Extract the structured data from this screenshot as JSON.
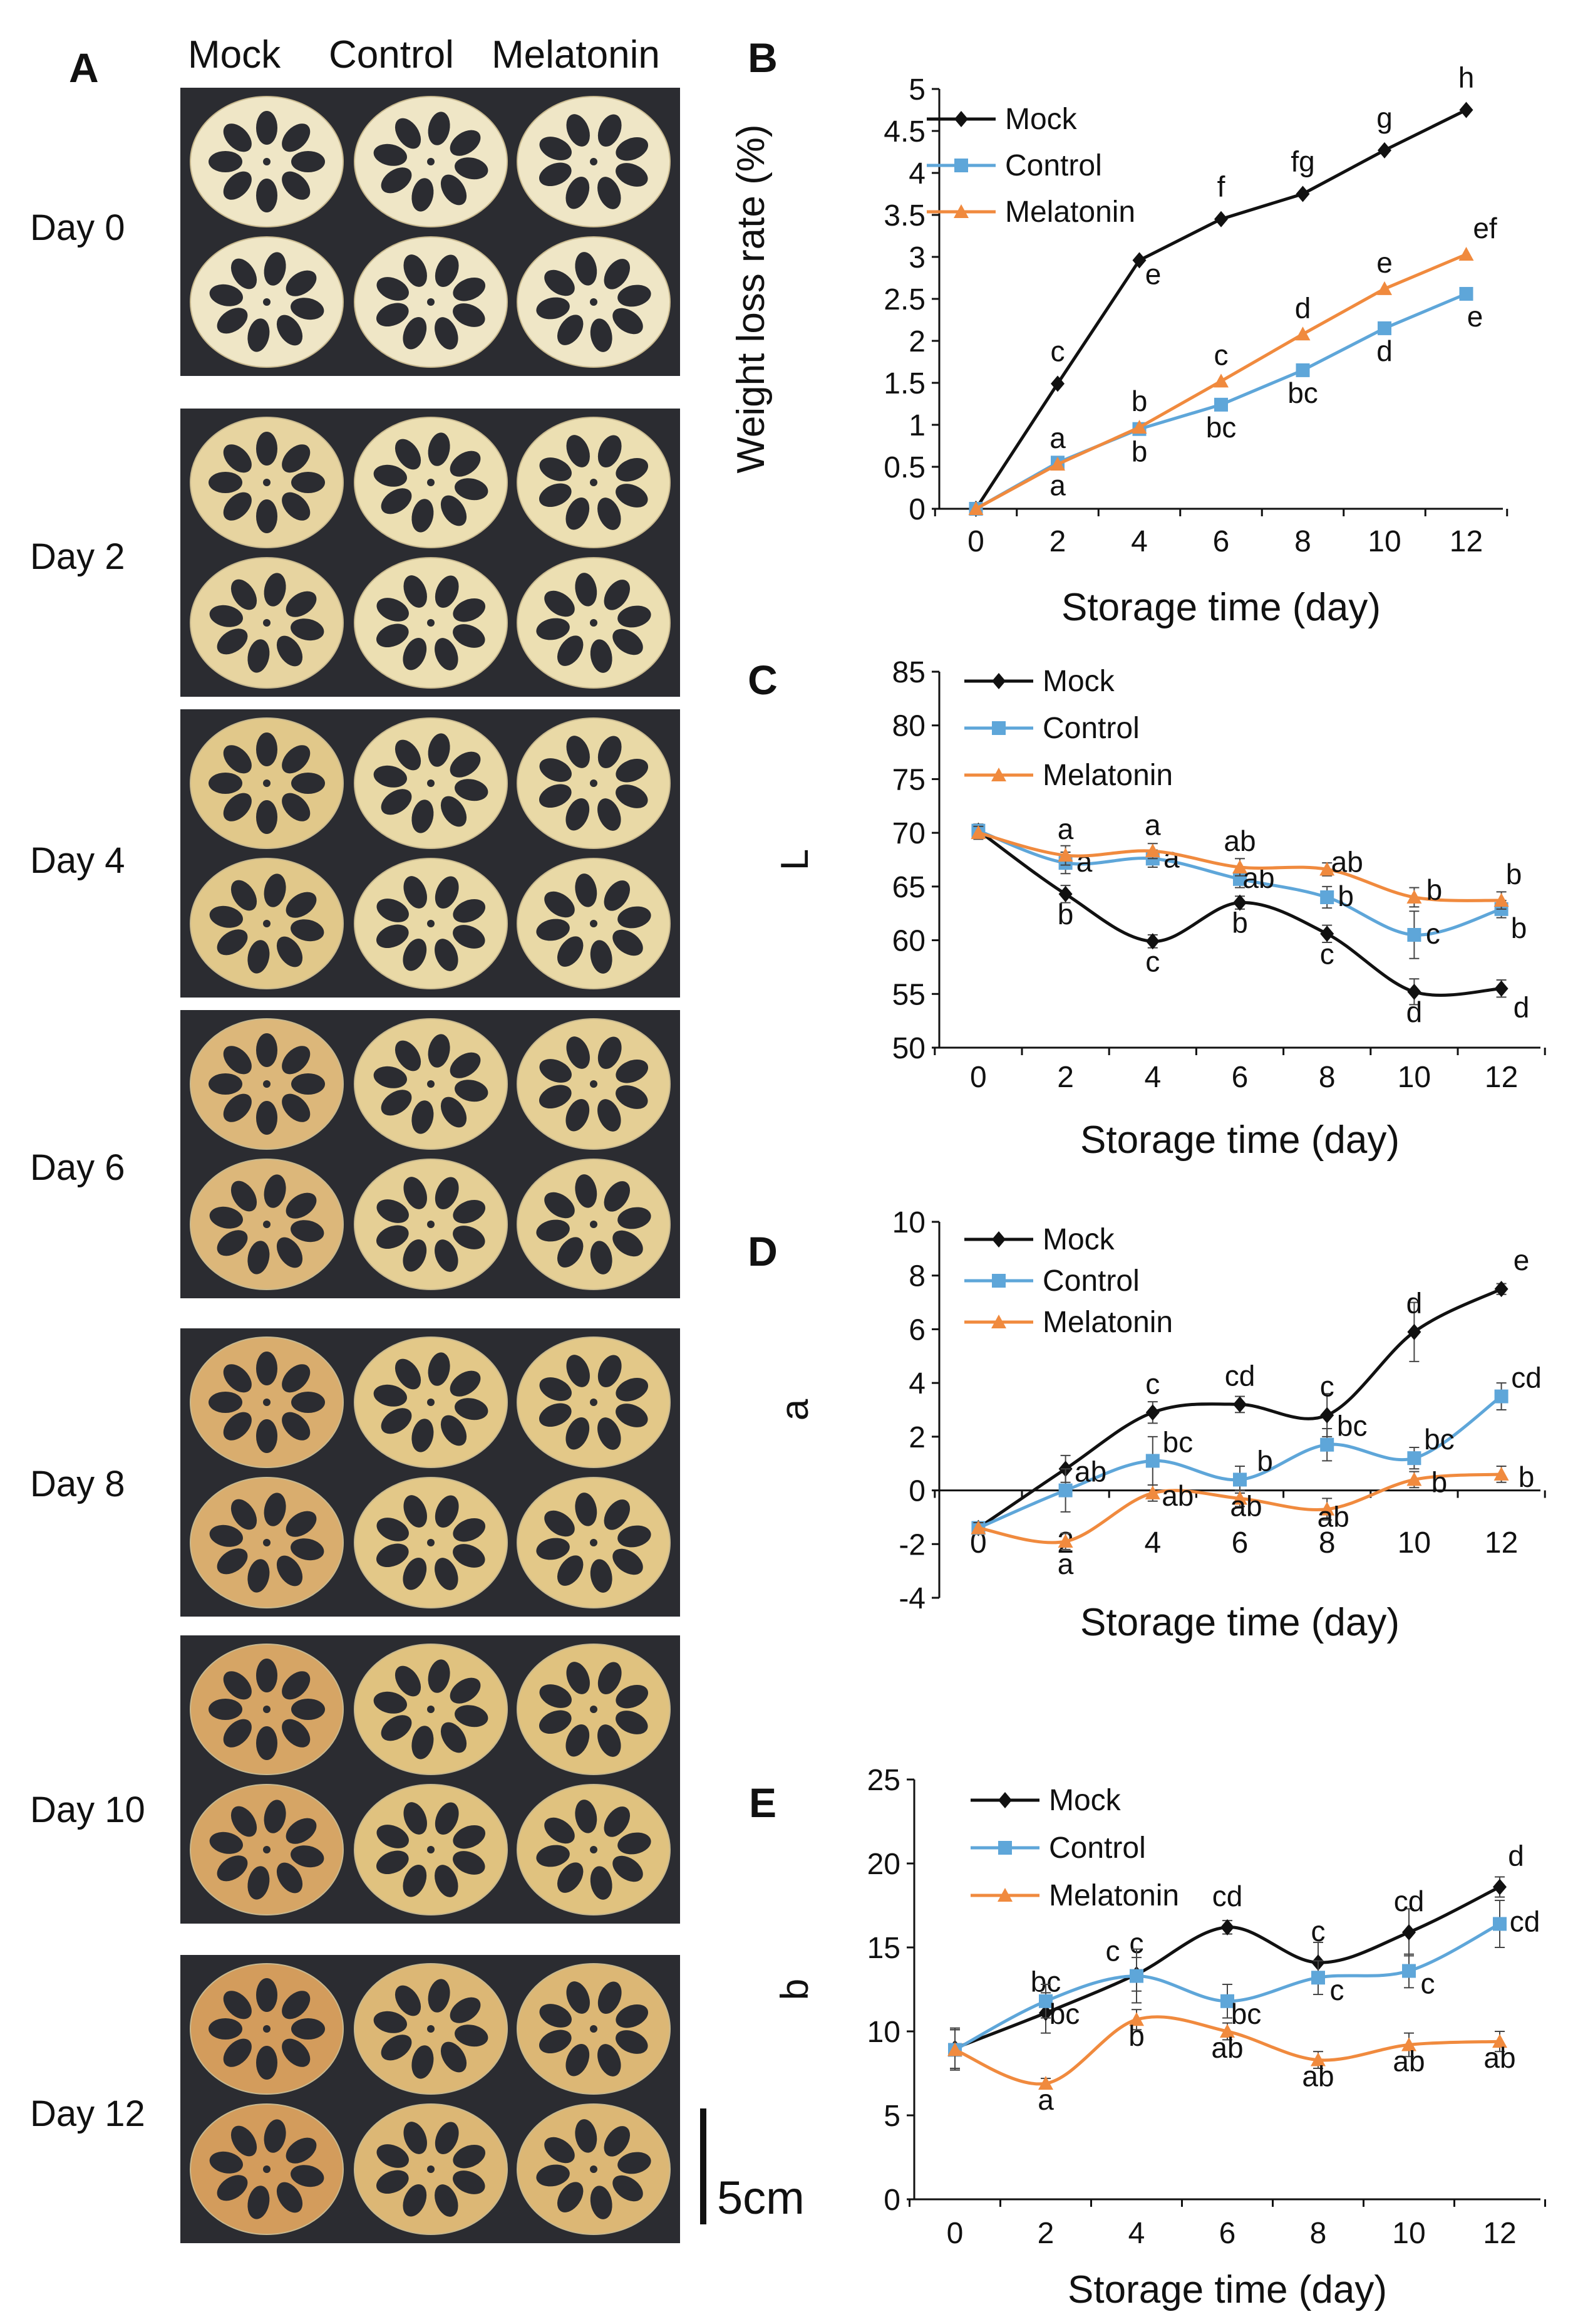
{
  "panel_a": {
    "label": "A",
    "columns": [
      "Mock",
      "Control",
      "Melatonin"
    ],
    "days": [
      "Day 0",
      "Day 2",
      "Day 4",
      "Day 6",
      "Day 8",
      "Day 10",
      "Day 12"
    ],
    "tints": [
      "#efe6c6",
      "#ecdfb2",
      "#e9d9a6",
      "#e5cf95",
      "#e3c888",
      "#e0c27f",
      "#dcb775"
    ],
    "mock_tints": [
      "#efe6c6",
      "#e7d4a0",
      "#e1c88a",
      "#dcb77a",
      "#d9ad6e",
      "#d6a565",
      "#d39c5c"
    ],
    "scale_bar": "5cm"
  },
  "chart_data": [
    {
      "panel": "B",
      "type": "line",
      "xlabel": "Storage time (day)",
      "ylabel": "Weight loss rate (%)",
      "x": [
        0,
        2,
        4,
        6,
        8,
        10,
        12
      ],
      "xticks": [
        "0",
        "2",
        "4",
        "6",
        "8",
        "10",
        "12"
      ],
      "ylim": [
        0,
        5
      ],
      "yticks": [
        "0",
        "0.5",
        "1",
        "1.5",
        "2",
        "2.5",
        "3",
        "3.5",
        "4",
        "4.5",
        "5"
      ],
      "legend_position": "top-left",
      "series": [
        {
          "name": "Mock",
          "color": "#111111",
          "marker": "diamond",
          "values": [
            0,
            1.49,
            2.96,
            3.45,
            3.75,
            4.27,
            4.75
          ],
          "errors": [
            0,
            0,
            0,
            0,
            0,
            0,
            0
          ],
          "labels": [
            "",
            "c",
            "e",
            "f",
            "fg",
            "g",
            "h"
          ]
        },
        {
          "name": "Control",
          "color": "#5ea6d9",
          "marker": "square",
          "values": [
            0,
            0.55,
            0.95,
            1.24,
            1.65,
            2.15,
            2.56
          ],
          "errors": [
            0,
            0,
            0,
            0,
            0,
            0,
            0
          ],
          "labels": [
            "",
            "a",
            "b",
            "bc",
            "bc",
            "d",
            "e"
          ]
        },
        {
          "name": "Melatonin",
          "color": "#f08a3e",
          "marker": "triangle",
          "values": [
            0,
            0.53,
            0.97,
            1.52,
            2.08,
            2.62,
            3.03
          ],
          "errors": [
            0,
            0,
            0,
            0,
            0,
            0,
            0
          ],
          "labels": [
            "",
            "a",
            "b",
            "c",
            "d",
            "e",
            "ef"
          ]
        }
      ]
    },
    {
      "panel": "C",
      "type": "line",
      "xlabel": "Storage time (day)",
      "ylabel": "L",
      "x": [
        0,
        2,
        4,
        6,
        8,
        10,
        12
      ],
      "xticks": [
        "0",
        "2",
        "4",
        "6",
        "8",
        "10",
        "12"
      ],
      "ylim": [
        50,
        85
      ],
      "yticks": [
        "50",
        "55",
        "60",
        "65",
        "70",
        "75",
        "80",
        "85"
      ],
      "legend_position": "top-left",
      "series": [
        {
          "name": "Mock",
          "color": "#111111",
          "marker": "diamond",
          "values": [
            70.2,
            64.3,
            59.9,
            63.5,
            60.6,
            55.2,
            55.5
          ],
          "errors": [
            0.6,
            0.8,
            0.6,
            0.6,
            0.8,
            1.2,
            0.8
          ],
          "labels": [
            "",
            "b",
            "c",
            "b",
            "c",
            "d",
            "d"
          ]
        },
        {
          "name": "Control",
          "color": "#5ea6d9",
          "marker": "square",
          "values": [
            70.2,
            67.2,
            67.6,
            65.7,
            64.0,
            60.5,
            62.9
          ],
          "errors": [
            0.6,
            1.0,
            0.8,
            0.8,
            1.0,
            2.2,
            0.8
          ],
          "labels": [
            "",
            "a",
            "a",
            "ab",
            "b",
            "c",
            "b"
          ]
        },
        {
          "name": "Melatonin",
          "color": "#f08a3e",
          "marker": "triangle",
          "values": [
            70.0,
            67.9,
            68.3,
            66.8,
            66.6,
            64.0,
            63.7
          ],
          "errors": [
            0.6,
            0.9,
            0.7,
            0.8,
            0.6,
            0.9,
            0.8
          ],
          "labels": [
            "",
            "a",
            "a",
            "ab",
            "ab",
            "b",
            "b"
          ]
        }
      ]
    },
    {
      "panel": "D",
      "type": "line",
      "xlabel": "Storage time (day)",
      "ylabel": "a",
      "x": [
        0,
        2,
        4,
        6,
        8,
        10,
        12
      ],
      "xticks": [
        "0",
        "2",
        "4",
        "6",
        "8",
        "10",
        "12"
      ],
      "ylim": [
        -4,
        10
      ],
      "yticks": [
        "-4",
        "-2",
        "0",
        "2",
        "4",
        "6",
        "8",
        "10"
      ],
      "legend_position": "top-left",
      "series": [
        {
          "name": "Mock",
          "color": "#111111",
          "marker": "diamond",
          "values": [
            -1.4,
            0.8,
            2.9,
            3.2,
            2.8,
            5.9,
            7.5
          ],
          "errors": [
            0.2,
            0.5,
            0.4,
            0.3,
            0.8,
            1.1,
            0.2
          ],
          "labels": [
            "",
            "",
            "c",
            "cd",
            "c",
            "d",
            "e"
          ]
        },
        {
          "name": "Control",
          "color": "#5ea6d9",
          "marker": "square",
          "values": [
            -1.4,
            0.0,
            1.1,
            0.4,
            1.7,
            1.2,
            3.5
          ],
          "errors": [
            0.2,
            0.8,
            0.9,
            0.5,
            0.6,
            0.4,
            0.5
          ],
          "labels": [
            "",
            "ab",
            "bc",
            "b",
            "bc",
            "bc",
            "cd"
          ]
        },
        {
          "name": "Melatonin",
          "color": "#f08a3e",
          "marker": "triangle",
          "values": [
            -1.4,
            -1.9,
            -0.1,
            -0.3,
            -0.7,
            0.4,
            0.6
          ],
          "errors": [
            0.2,
            0.3,
            0.3,
            0.3,
            0.4,
            0.3,
            0.3
          ],
          "labels": [
            "",
            "a",
            "ab",
            "ab",
            "ab",
            "b",
            "b"
          ]
        }
      ]
    },
    {
      "panel": "E",
      "type": "line",
      "xlabel": "Storage time (day)",
      "ylabel": "b",
      "x": [
        0,
        2,
        4,
        6,
        8,
        10,
        12
      ],
      "xticks": [
        "0",
        "2",
        "4",
        "6",
        "8",
        "10",
        "12"
      ],
      "ylim": [
        0,
        25
      ],
      "yticks": [
        "0",
        "5",
        "10",
        "15",
        "20",
        "25"
      ],
      "legend_position": "top-left",
      "series": [
        {
          "name": "Mock",
          "color": "#111111",
          "marker": "diamond",
          "values": [
            9.0,
            11.1,
            13.4,
            16.2,
            14.1,
            15.9,
            18.6
          ],
          "errors": [
            1.2,
            1.2,
            1.0,
            0.4,
            1.2,
            1.4,
            0.6
          ],
          "labels": [
            "",
            "bc",
            "c",
            "cd",
            "c",
            "cd",
            "d"
          ]
        },
        {
          "name": "Control",
          "color": "#5ea6d9",
          "marker": "square",
          "values": [
            8.9,
            11.8,
            13.3,
            11.8,
            13.2,
            13.6,
            16.4
          ],
          "errors": [
            1.2,
            1.0,
            1.6,
            1.0,
            1.0,
            1.0,
            1.4
          ],
          "labels": [
            "",
            "bc",
            "c",
            "bc",
            "c",
            "c",
            "cd"
          ]
        },
        {
          "name": "Melatonin",
          "color": "#f08a3e",
          "marker": "triangle",
          "values": [
            8.9,
            6.9,
            10.7,
            10.0,
            8.3,
            9.2,
            9.4
          ],
          "errors": [
            1.2,
            0.3,
            0.6,
            0.5,
            0.5,
            0.7,
            0.6
          ],
          "labels": [
            "",
            "a",
            "b",
            "ab",
            "ab",
            "ab",
            "ab"
          ]
        }
      ]
    }
  ]
}
